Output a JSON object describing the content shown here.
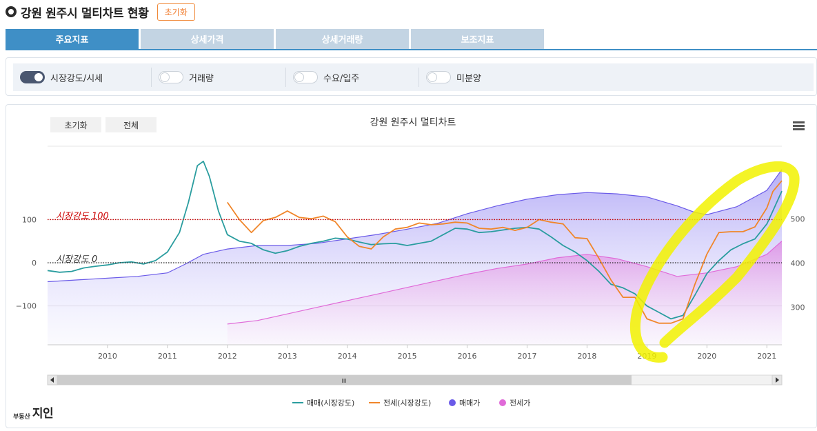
{
  "page": {
    "title": "강원 원주시 멀티차트 현황",
    "reset_label": "초기화"
  },
  "tabs": [
    {
      "label": "주요지표",
      "active": true
    },
    {
      "label": "상세가격",
      "active": false
    },
    {
      "label": "상세거래량",
      "active": false
    },
    {
      "label": "보조지표",
      "active": false
    }
  ],
  "toggles": [
    {
      "label": "시장강도/시세",
      "on": true
    },
    {
      "label": "거래량",
      "on": false
    },
    {
      "label": "수요/입주",
      "on": false
    },
    {
      "label": "미분양",
      "on": false
    }
  ],
  "chart_controls": {
    "reset_label": "초기화",
    "all_label": "전체"
  },
  "brand": {
    "small": "부동산",
    "big": "지인"
  },
  "chart_data": {
    "type": "line",
    "title": "강원 원주시 멀티차트",
    "x_axis": {
      "min": 2009.0,
      "max": 2021.25,
      "ticks": [
        "2010",
        "2011",
        "2012",
        "2013",
        "2014",
        "2015",
        "2016",
        "2017",
        "2018",
        "2019",
        "2020",
        "2021"
      ]
    },
    "y_left": {
      "min": -190,
      "max": 270,
      "ticks": [
        {
          "value": 100,
          "label": "100"
        },
        {
          "value": 0,
          "label": "0"
        },
        {
          "value": -100,
          "label": "−100"
        }
      ]
    },
    "y_right": {
      "min": 215,
      "max": 665,
      "ticks": [
        {
          "value": 500,
          "label": "500"
        },
        {
          "value": 400,
          "label": "400"
        },
        {
          "value": 300,
          "label": "300"
        }
      ]
    },
    "plot_lines": [
      {
        "value": 100,
        "label": "시장강도 100",
        "color": "#cc0000",
        "style": "dotted"
      },
      {
        "value": 0,
        "label": "시장강도 0",
        "color": "#333333",
        "style": "dotted"
      }
    ],
    "series": [
      {
        "name": "매매(시장강도)",
        "type": "line",
        "axis": "left",
        "color": "#2a9d9f",
        "points": [
          [
            2009.0,
            -18
          ],
          [
            2009.2,
            -22
          ],
          [
            2009.4,
            -20
          ],
          [
            2009.6,
            -12
          ],
          [
            2009.8,
            -8
          ],
          [
            2010.0,
            -5
          ],
          [
            2010.2,
            0
          ],
          [
            2010.4,
            2
          ],
          [
            2010.6,
            -3
          ],
          [
            2010.8,
            5
          ],
          [
            2011.0,
            25
          ],
          [
            2011.2,
            70
          ],
          [
            2011.35,
            140
          ],
          [
            2011.5,
            225
          ],
          [
            2011.6,
            235
          ],
          [
            2011.7,
            200
          ],
          [
            2011.85,
            120
          ],
          [
            2012.0,
            65
          ],
          [
            2012.2,
            50
          ],
          [
            2012.4,
            45
          ],
          [
            2012.6,
            30
          ],
          [
            2012.8,
            22
          ],
          [
            2013.0,
            28
          ],
          [
            2013.2,
            38
          ],
          [
            2013.4,
            45
          ],
          [
            2013.6,
            50
          ],
          [
            2013.8,
            57
          ],
          [
            2014.0,
            55
          ],
          [
            2014.2,
            48
          ],
          [
            2014.4,
            42
          ],
          [
            2014.6,
            44
          ],
          [
            2014.8,
            45
          ],
          [
            2015.0,
            40
          ],
          [
            2015.2,
            45
          ],
          [
            2015.4,
            50
          ],
          [
            2015.6,
            65
          ],
          [
            2015.8,
            80
          ],
          [
            2016.0,
            78
          ],
          [
            2016.2,
            70
          ],
          [
            2016.4,
            72
          ],
          [
            2016.6,
            76
          ],
          [
            2016.8,
            80
          ],
          [
            2017.0,
            82
          ],
          [
            2017.2,
            78
          ],
          [
            2017.4,
            60
          ],
          [
            2017.6,
            40
          ],
          [
            2017.8,
            25
          ],
          [
            2018.0,
            5
          ],
          [
            2018.2,
            -20
          ],
          [
            2018.4,
            -50
          ],
          [
            2018.6,
            -58
          ],
          [
            2018.8,
            -72
          ],
          [
            2019.0,
            -100
          ],
          [
            2019.2,
            -115
          ],
          [
            2019.4,
            -130
          ],
          [
            2019.6,
            -122
          ],
          [
            2019.8,
            -75
          ],
          [
            2020.0,
            -25
          ],
          [
            2020.2,
            5
          ],
          [
            2020.4,
            30
          ],
          [
            2020.6,
            44
          ],
          [
            2020.8,
            55
          ],
          [
            2021.0,
            90
          ],
          [
            2021.1,
            120
          ],
          [
            2021.25,
            166
          ]
        ]
      },
      {
        "name": "전세(시장강도)",
        "type": "line",
        "axis": "left",
        "color": "#f0862a",
        "points": [
          [
            2012.0,
            140
          ],
          [
            2012.2,
            100
          ],
          [
            2012.4,
            70
          ],
          [
            2012.6,
            98
          ],
          [
            2012.8,
            105
          ],
          [
            2013.0,
            120
          ],
          [
            2013.2,
            105
          ],
          [
            2013.4,
            102
          ],
          [
            2013.6,
            108
          ],
          [
            2013.8,
            95
          ],
          [
            2014.0,
            60
          ],
          [
            2014.2,
            38
          ],
          [
            2014.4,
            32
          ],
          [
            2014.6,
            60
          ],
          [
            2014.8,
            78
          ],
          [
            2015.0,
            82
          ],
          [
            2015.2,
            92
          ],
          [
            2015.4,
            88
          ],
          [
            2015.6,
            90
          ],
          [
            2015.8,
            94
          ],
          [
            2016.0,
            92
          ],
          [
            2016.2,
            80
          ],
          [
            2016.4,
            78
          ],
          [
            2016.6,
            82
          ],
          [
            2016.8,
            75
          ],
          [
            2017.0,
            82
          ],
          [
            2017.2,
            100
          ],
          [
            2017.4,
            94
          ],
          [
            2017.6,
            90
          ],
          [
            2017.8,
            58
          ],
          [
            2018.0,
            56
          ],
          [
            2018.2,
            10
          ],
          [
            2018.4,
            -40
          ],
          [
            2018.6,
            -80
          ],
          [
            2018.8,
            -80
          ],
          [
            2019.0,
            -130
          ],
          [
            2019.2,
            -140
          ],
          [
            2019.4,
            -140
          ],
          [
            2019.6,
            -130
          ],
          [
            2019.8,
            -50
          ],
          [
            2020.0,
            20
          ],
          [
            2020.2,
            70
          ],
          [
            2020.4,
            72
          ],
          [
            2020.6,
            72
          ],
          [
            2020.8,
            83
          ],
          [
            2021.0,
            127
          ],
          [
            2021.1,
            165
          ],
          [
            2021.25,
            190
          ]
        ]
      },
      {
        "name": "매매가",
        "type": "area",
        "axis": "right",
        "color": "#6a5ae8",
        "points": [
          [
            2009.0,
            358
          ],
          [
            2009.5,
            362
          ],
          [
            2010.0,
            366
          ],
          [
            2010.5,
            370
          ],
          [
            2011.0,
            378
          ],
          [
            2011.3,
            398
          ],
          [
            2011.6,
            420
          ],
          [
            2012.0,
            432
          ],
          [
            2012.5,
            440
          ],
          [
            2013.0,
            440
          ],
          [
            2013.5,
            445
          ],
          [
            2014.0,
            455
          ],
          [
            2014.5,
            465
          ],
          [
            2015.0,
            477
          ],
          [
            2015.5,
            490
          ],
          [
            2016.0,
            512
          ],
          [
            2016.5,
            530
          ],
          [
            2017.0,
            545
          ],
          [
            2017.5,
            555
          ],
          [
            2018.0,
            560
          ],
          [
            2018.5,
            557
          ],
          [
            2019.0,
            550
          ],
          [
            2019.5,
            530
          ],
          [
            2019.8,
            515
          ],
          [
            2020.0,
            510
          ],
          [
            2020.5,
            528
          ],
          [
            2021.0,
            565
          ],
          [
            2021.25,
            612
          ]
        ]
      },
      {
        "name": "전세가",
        "type": "area",
        "axis": "right",
        "color": "#e06ad8",
        "points": [
          [
            2012.0,
            262
          ],
          [
            2012.5,
            270
          ],
          [
            2013.0,
            285
          ],
          [
            2013.5,
            300
          ],
          [
            2014.0,
            315
          ],
          [
            2014.5,
            330
          ],
          [
            2015.0,
            345
          ],
          [
            2015.5,
            360
          ],
          [
            2016.0,
            375
          ],
          [
            2016.5,
            388
          ],
          [
            2017.0,
            398
          ],
          [
            2017.5,
            412
          ],
          [
            2018.0,
            420
          ],
          [
            2018.5,
            410
          ],
          [
            2019.0,
            392
          ],
          [
            2019.5,
            370
          ],
          [
            2020.0,
            378
          ],
          [
            2020.5,
            392
          ],
          [
            2021.0,
            420
          ],
          [
            2021.25,
            450
          ]
        ]
      }
    ],
    "annotation": {
      "type": "highlight",
      "color": "#f2f200",
      "target": "2018-2021 rebound"
    },
    "scrollbar": {
      "grip": "III"
    }
  }
}
